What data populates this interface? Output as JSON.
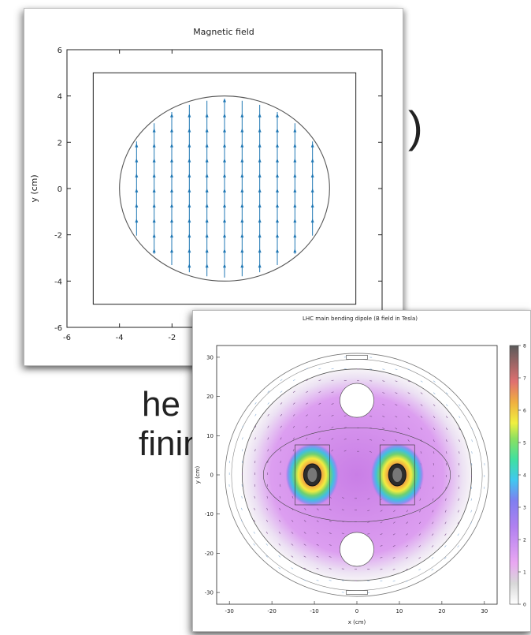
{
  "background_text": {
    "line_a": ")",
    "line_b": "he",
    "line_c": "fining the"
  },
  "chart_data": [
    {
      "type": "quiver",
      "title": "Magnetic field",
      "xlabel": "",
      "ylabel": "y (cm)",
      "xlim": [
        -6,
        6
      ],
      "ylim": [
        -6,
        6
      ],
      "x_ticks": [
        "-6",
        "-4",
        "-2"
      ],
      "y_ticks": [
        "6",
        "4",
        "2",
        "0",
        "-2",
        "-4",
        "-6"
      ],
      "circle": {
        "center": [
          0,
          0
        ],
        "radius_x": 4,
        "radius_y": 4
      },
      "rectangle": {
        "x": [
          -5,
          5
        ],
        "y": [
          -5,
          5
        ]
      },
      "vector_field": {
        "direction": "+y",
        "x_spacing": 0.67,
        "color": "#1f77b4"
      }
    },
    {
      "type": "heatmap",
      "title": "LHC main bending dipole (B field in Tesla)",
      "xlabel": "x (cm)",
      "ylabel": "y (cm)",
      "xlim": [
        -33,
        33
      ],
      "ylim": [
        -33,
        33
      ],
      "x_ticks": [
        "-30",
        "-20",
        "-10",
        "0",
        "10",
        "20",
        "30"
      ],
      "y_ticks": [
        "30",
        "20",
        "10",
        "0",
        "-10",
        "-20",
        "-30"
      ],
      "colorbar": {
        "min": 0,
        "max": 8,
        "ticks": [
          "8",
          "7",
          "6",
          "5",
          "4",
          "3",
          "2",
          "1",
          "0"
        ]
      },
      "apertures": [
        {
          "x": -10.5,
          "y": 0
        },
        {
          "x": 9.5,
          "y": 0
        }
      ],
      "holes": [
        {
          "x": 0,
          "y": 19
        },
        {
          "x": 0,
          "y": -19
        }
      ]
    }
  ]
}
